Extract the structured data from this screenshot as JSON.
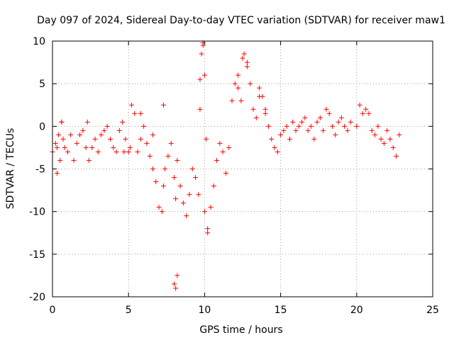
{
  "chart_data": {
    "type": "scatter",
    "title": "Day 097 of 2024, Sidereal Day-to-day VTEC variation (SDTVAR) for receiver maw1",
    "xlabel": "GPS time / hours",
    "ylabel": "SDTVAR / TECUs",
    "xlim": [
      0,
      25
    ],
    "ylim": [
      -20,
      10
    ],
    "xticks": [
      0,
      5,
      10,
      15,
      20,
      25
    ],
    "yticks": [
      -20,
      -15,
      -10,
      -5,
      0,
      5,
      10
    ],
    "xtick_labels": [
      "0",
      "5",
      "10",
      "15",
      "20",
      "25"
    ],
    "ytick_labels": [
      "-20",
      "-15",
      "-10",
      "-5",
      "0",
      "5",
      "10"
    ],
    "grid": true,
    "marker": "+",
    "color": "#ff0000",
    "series": [
      {
        "name": "maw1 SDTVAR",
        "x": [
          0.0,
          0.2,
          0.3,
          0.4,
          0.5,
          0.6,
          0.7,
          0.8,
          1.0,
          1.2,
          1.4,
          1.6,
          1.8,
          2.0,
          2.2,
          2.4,
          2.6,
          2.8,
          3.0,
          3.2,
          3.4,
          3.6,
          3.8,
          4.0,
          4.2,
          4.4,
          4.6,
          4.8,
          5.0,
          5.2,
          5.4,
          5.6,
          5.8,
          6.0,
          6.2,
          6.4,
          6.6,
          6.8,
          7.0,
          7.2,
          7.3,
          7.4,
          7.6,
          7.8,
          8.0,
          8.1,
          8.2,
          8.4,
          8.6,
          8.8,
          9.0,
          9.2,
          9.4,
          9.6,
          9.7,
          9.8,
          9.9,
          10.0,
          10.1,
          10.2,
          10.4,
          10.6,
          10.8,
          11.0,
          11.2,
          11.4,
          11.6,
          11.8,
          12.0,
          12.2,
          12.4,
          12.6,
          12.8,
          13.0,
          13.2,
          13.4,
          13.6,
          13.8,
          14.0,
          14.2,
          14.4,
          14.6,
          14.8,
          15.0,
          15.2,
          15.4,
          15.6,
          15.8,
          16.0,
          16.2,
          16.4,
          16.6,
          16.8,
          17.0,
          17.2,
          17.4,
          17.6,
          17.8,
          18.0,
          18.2,
          18.4,
          18.6,
          18.8,
          19.0,
          19.2,
          19.4,
          19.6,
          20.0,
          20.2,
          20.4,
          20.6,
          20.8,
          21.0,
          21.2,
          21.4,
          21.6,
          21.8,
          22.0,
          22.2,
          22.4,
          22.6,
          22.8,
          8.0,
          8.1,
          8.2,
          7.3,
          10.0,
          10.2,
          12.2,
          12.5,
          12.8,
          5.8,
          6.6,
          9.9,
          0.3,
          0.6,
          13.6,
          14.0,
          2.3,
          4.7,
          5.1,
          9.7
        ],
        "y": [
          -3.0,
          -2.0,
          -5.5,
          -1.0,
          -4.0,
          0.5,
          -1.5,
          -2.5,
          -3.0,
          -1.0,
          -4.0,
          -2.0,
          -1.0,
          -0.5,
          -2.5,
          -4.0,
          -2.5,
          -1.5,
          -3.0,
          -1.0,
          -0.5,
          0.0,
          -1.5,
          -2.5,
          -3.0,
          -0.5,
          0.5,
          -1.5,
          -3.0,
          2.5,
          1.5,
          -3.0,
          1.5,
          0.0,
          -2.0,
          -3.5,
          -5.0,
          -6.5,
          -9.5,
          -10.0,
          -7.0,
          -5.0,
          -3.5,
          -2.0,
          -6.0,
          -8.5,
          -4.0,
          -7.0,
          -9.0,
          -10.5,
          -8.0,
          -5.0,
          -6.0,
          -8.0,
          2.0,
          8.5,
          9.5,
          6.0,
          -1.5,
          -12.0,
          -9.5,
          -7.0,
          -4.0,
          -2.0,
          -3.0,
          -5.5,
          -2.5,
          3.0,
          5.0,
          4.5,
          3.0,
          8.5,
          7.5,
          5.0,
          2.0,
          1.0,
          4.5,
          3.5,
          2.0,
          0.0,
          -1.5,
          -2.5,
          -3.0,
          -1.0,
          -0.5,
          0.0,
          -1.5,
          0.5,
          -0.5,
          0.0,
          0.5,
          1.0,
          -0.5,
          0.0,
          -1.5,
          0.5,
          1.0,
          -0.5,
          2.0,
          1.5,
          0.0,
          -1.0,
          0.5,
          1.0,
          0.0,
          -0.5,
          0.5,
          0.0,
          2.5,
          1.5,
          2.0,
          1.5,
          -0.5,
          -1.0,
          0.0,
          -1.5,
          -2.0,
          -0.5,
          -1.5,
          -2.5,
          -3.5,
          -1.0,
          -18.5,
          -19.0,
          -17.5,
          2.5,
          -10.0,
          -12.5,
          6.0,
          8.0,
          7.0,
          -1.5,
          -1.0,
          9.8,
          -2.5,
          0.5,
          3.5,
          1.5,
          0.5,
          -3.0,
          -2.5,
          5.5
        ]
      }
    ]
  }
}
